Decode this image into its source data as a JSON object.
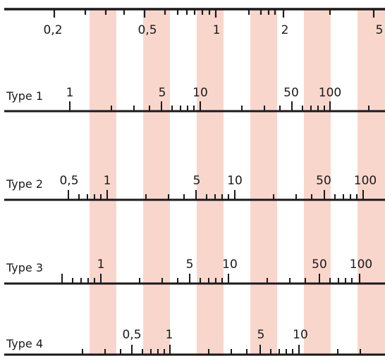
{
  "band_color": "#f9d6cc",
  "line_color": "#1a1a1a",
  "top_scale": {
    "labels": [
      "0,2",
      "0,5",
      "1",
      "2",
      "5"
    ]
  },
  "rows": [
    {
      "name": "Type 1",
      "labels": [
        "1",
        "5",
        "10",
        "50",
        "100"
      ]
    },
    {
      "name": "Type 2",
      "labels": [
        "0,5",
        "1",
        "5",
        "10",
        "50",
        "100"
      ]
    },
    {
      "name": "Type 3",
      "labels": [
        "1",
        "5",
        "10",
        "50",
        "100"
      ]
    },
    {
      "name": "Type 4",
      "labels": [
        "0,5",
        "1",
        "5",
        "10"
      ]
    }
  ]
}
